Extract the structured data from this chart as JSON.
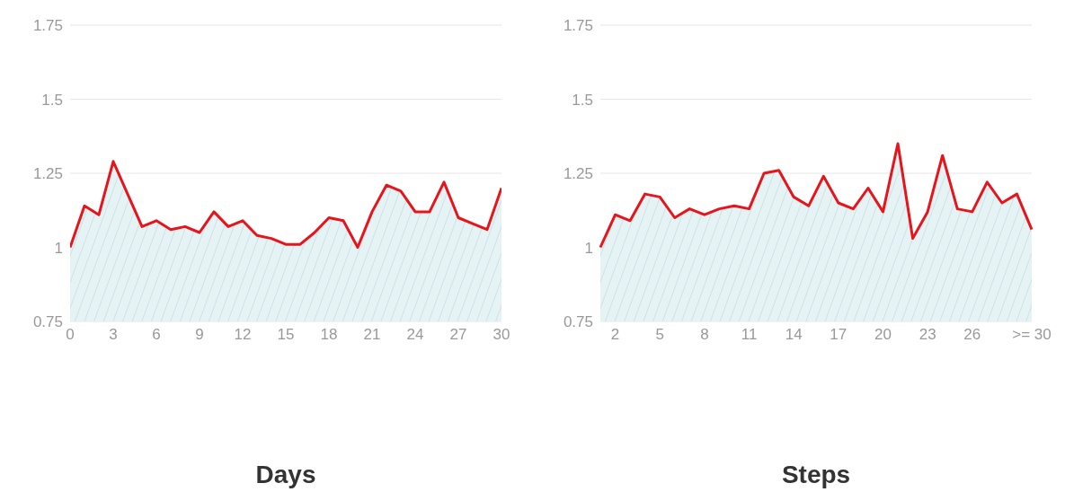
{
  "chart_data": [
    {
      "type": "area",
      "xlabel": "Days",
      "x": [
        0,
        1,
        2,
        3,
        4,
        5,
        6,
        7,
        8,
        9,
        10,
        11,
        12,
        13,
        14,
        15,
        16,
        17,
        18,
        19,
        20,
        21,
        22,
        23,
        24,
        25,
        26,
        27,
        28,
        29,
        30
      ],
      "series": [
        {
          "color": "#e8141b",
          "values": [
            1.0,
            1.14,
            1.11,
            1.29,
            1.18,
            1.07,
            1.09,
            1.06,
            1.07,
            1.05,
            1.12,
            1.07,
            1.09,
            1.04,
            1.03,
            1.01,
            1.01,
            1.05,
            1.1,
            1.09,
            1.0,
            1.12,
            1.21,
            1.19,
            1.12,
            1.12,
            1.22,
            1.1,
            1.08,
            1.06,
            1.2
          ]
        }
      ],
      "xlim": [
        0,
        30
      ],
      "xticks": [
        0,
        3,
        6,
        9,
        12,
        15,
        18,
        21,
        24,
        27,
        30
      ],
      "ylim": [
        0.75,
        1.75
      ],
      "yticks": [
        0.75,
        1,
        1.25,
        1.5,
        1.75
      ],
      "grid": "y",
      "marker": "none",
      "line_style": "solid",
      "legend": false
    },
    {
      "type": "area",
      "xlabel": "Steps",
      "categories": [
        null,
        "2",
        null,
        null,
        "5",
        null,
        null,
        "8",
        null,
        null,
        "11",
        null,
        null,
        "14",
        null,
        null,
        "17",
        null,
        null,
        "20",
        null,
        null,
        "23",
        null,
        null,
        "26",
        null,
        null,
        null,
        ">= 30"
      ],
      "series": [
        {
          "color": "#e8141b",
          "values": [
            1.0,
            1.11,
            1.09,
            1.18,
            1.17,
            1.1,
            1.13,
            1.11,
            1.13,
            1.14,
            1.13,
            1.25,
            1.26,
            1.17,
            1.14,
            1.24,
            1.15,
            1.13,
            1.2,
            1.12,
            1.35,
            1.03,
            1.12,
            1.31,
            1.13,
            1.12,
            1.22,
            1.15,
            1.18,
            1.06
          ]
        }
      ],
      "ylim": [
        0.75,
        1.75
      ],
      "yticks": [
        0.75,
        1,
        1.25,
        1.5,
        1.75
      ],
      "grid": "y",
      "marker": "none",
      "line_style": "solid",
      "legend": false
    }
  ]
}
